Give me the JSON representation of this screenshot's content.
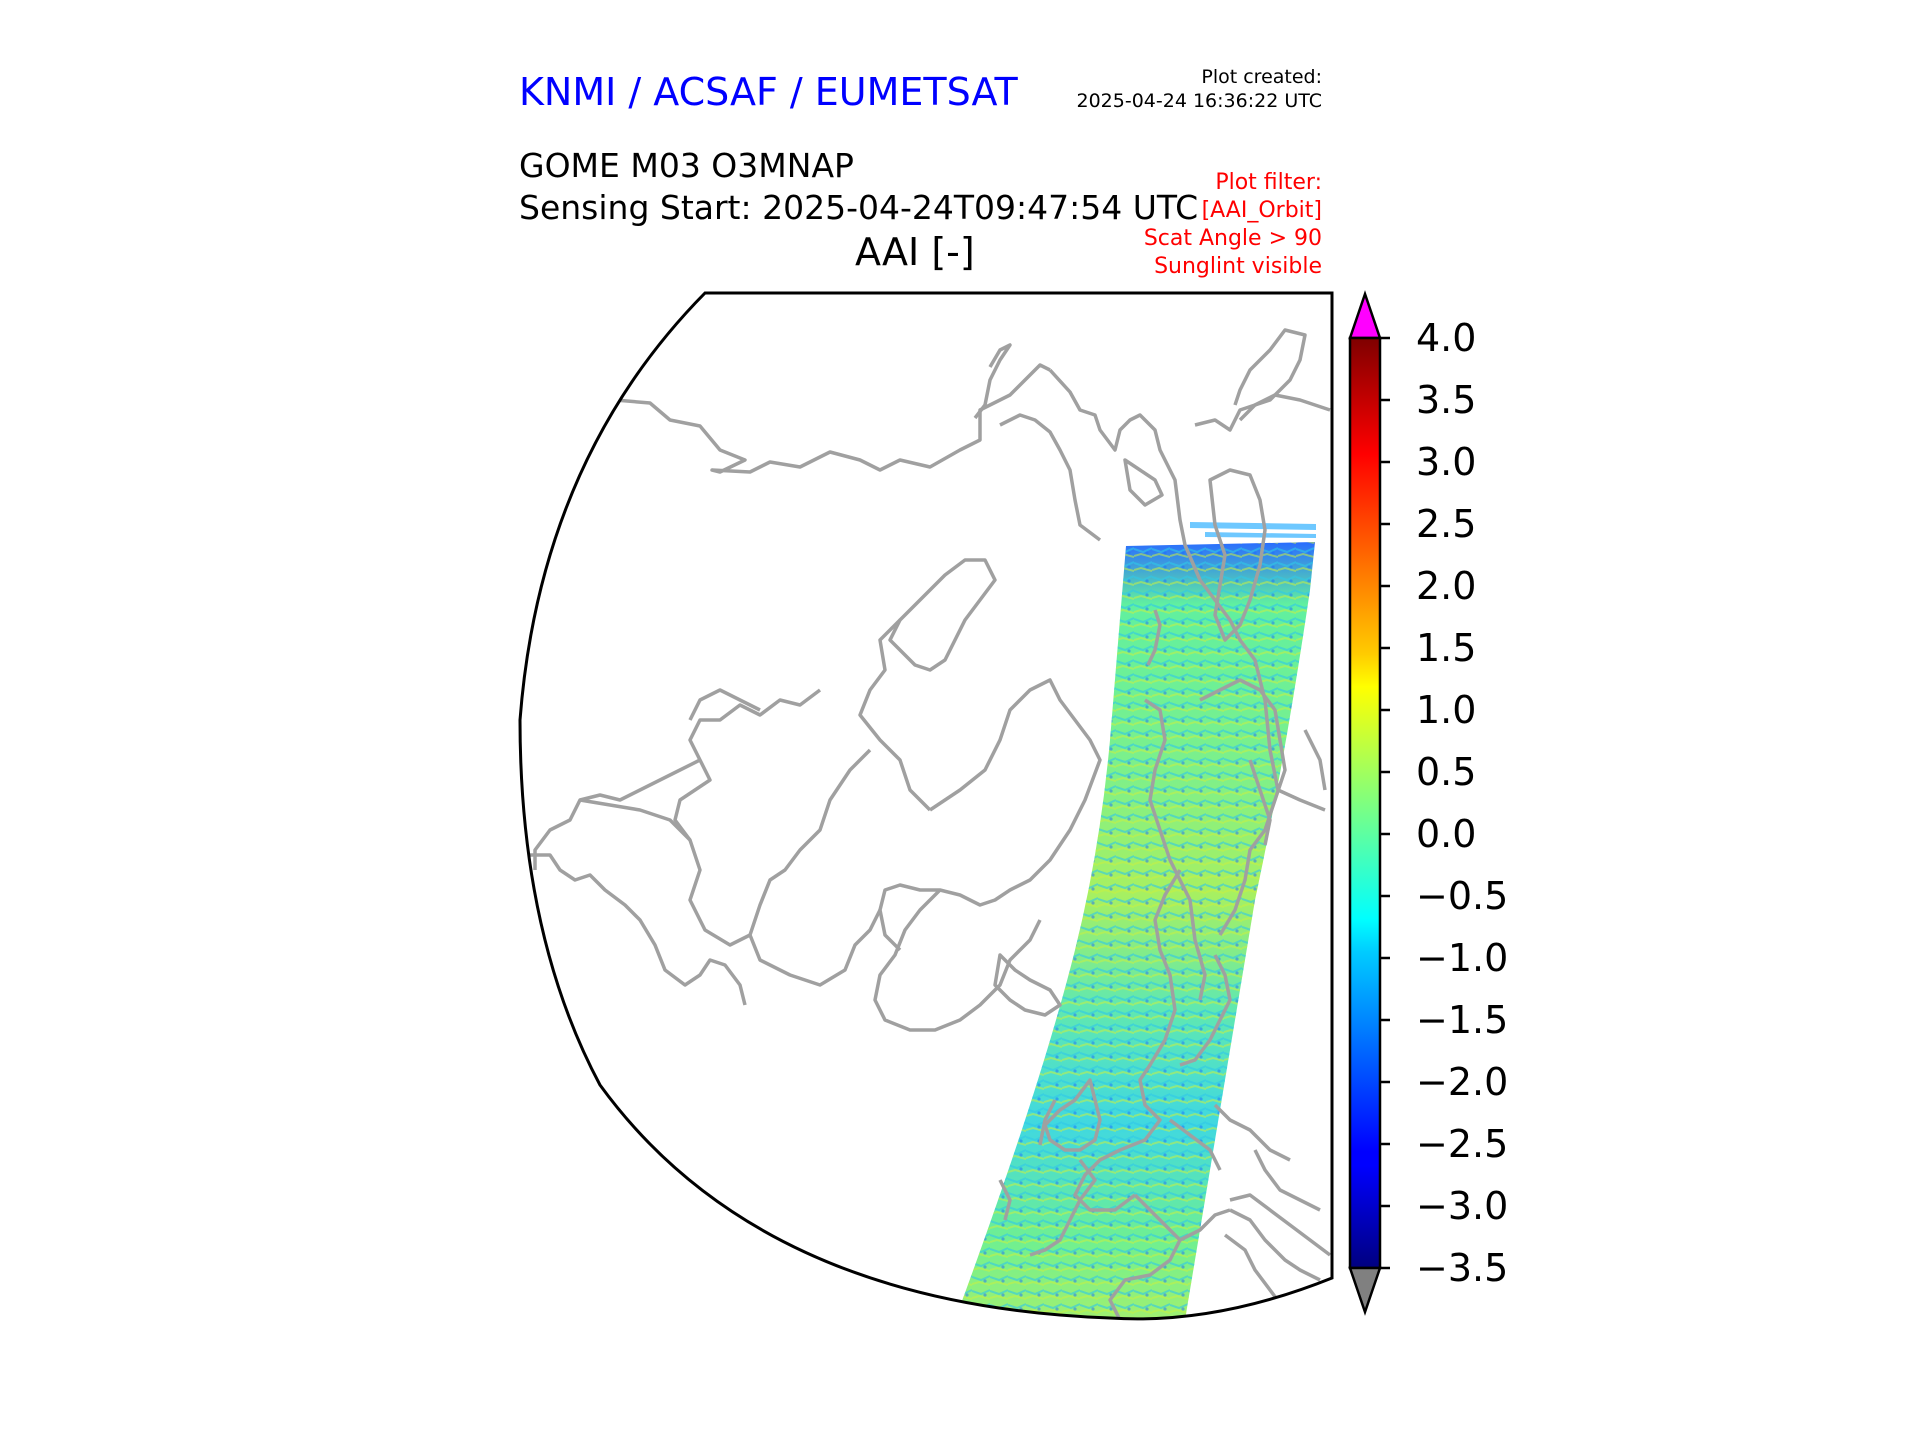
{
  "header": {
    "org": "KNMI / ACSAF / EUMETSAT",
    "created_label": "Plot created:",
    "created_time": "2025-04-24 16:36:22 UTC",
    "product": "GOME M03 O3MNAP",
    "sensing": "Sensing Start: 2025-04-24T09:47:54 UTC",
    "variable": "AAI [-]",
    "filters": [
      "Plot filter:",
      "[AAI_Orbit]",
      "Scat Angle > 90",
      "Sunglint visible"
    ]
  },
  "colorbar": {
    "min": -3.5,
    "max": 4.0,
    "ticks": [
      "4.0",
      "3.5",
      "3.0",
      "2.5",
      "2.0",
      "1.5",
      "1.0",
      "0.5",
      "0.0",
      "−0.5",
      "−1.0",
      "−1.5",
      "−2.0",
      "−2.5",
      "−3.0",
      "−3.5"
    ],
    "tick_values": [
      4.0,
      3.5,
      3.0,
      2.5,
      2.0,
      1.5,
      1.0,
      0.5,
      0.0,
      -0.5,
      -1.0,
      -1.5,
      -2.0,
      -2.5,
      -3.0,
      -3.5
    ],
    "over_color": "#ff00ff",
    "under_color": "#808080",
    "colormap": "jet"
  },
  "map": {
    "projection": "polar-stereographic-north",
    "coastline_color": "#a0a0a0",
    "swath_typical_range": [
      -1.5,
      1.0
    ]
  }
}
